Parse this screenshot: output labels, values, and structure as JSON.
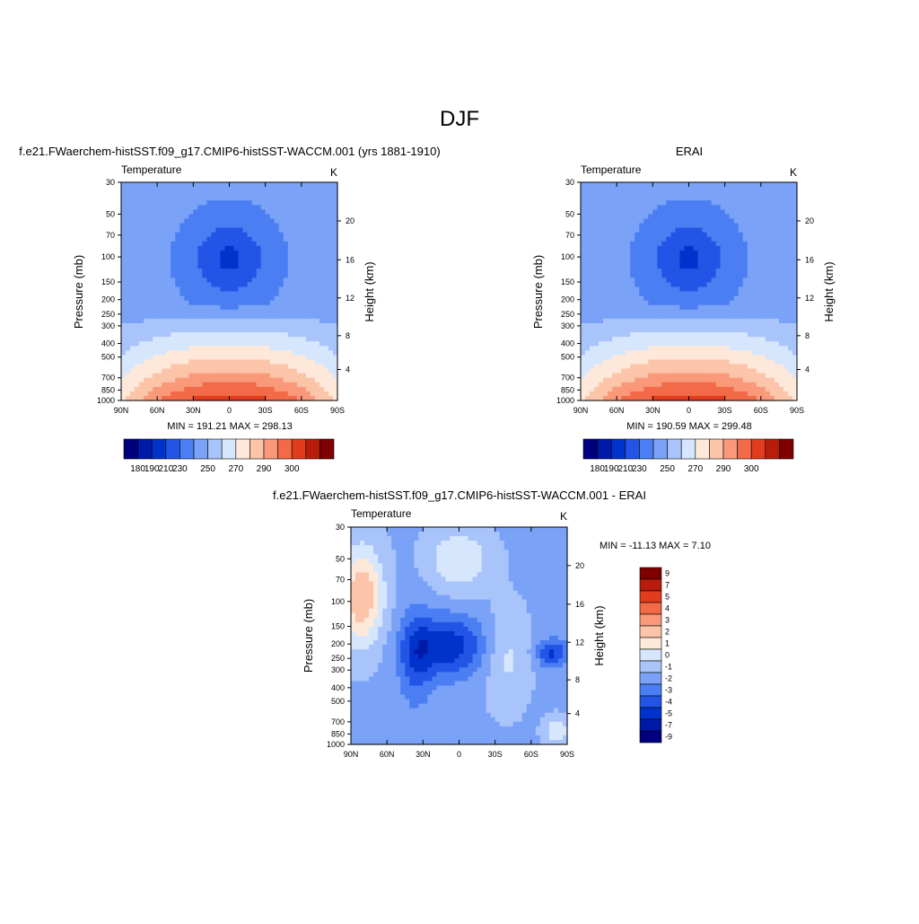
{
  "page_title": "DJF",
  "colors": {
    "temperature_levels": [
      "#00007f",
      "#0019a6",
      "#0033cc",
      "#2255e6",
      "#4a7ef2",
      "#7aa2f7",
      "#a9c4fb",
      "#d6e6fd",
      "#fde8da",
      "#fcc4a8",
      "#f9997a",
      "#f26a47",
      "#e23b1e",
      "#b81c0c",
      "#7f0000"
    ],
    "difference_levels": [
      "#00007f",
      "#0019a6",
      "#0033cc",
      "#2255e6",
      "#4a7ef2",
      "#7aa2f7",
      "#a9c4fb",
      "#d6e6fd",
      "#fde8da",
      "#fcc4a8",
      "#f9997a",
      "#f26a47",
      "#e23b1e",
      "#b81c0c",
      "#7f0000"
    ]
  },
  "chart_data": [
    {
      "type": "heatmap",
      "title": "f.e21.FWaerchem-histSST.f09_g17.CMIP6-histSST-WACCM.001 (yrs 1881-1910)",
      "left_string": "Temperature",
      "right_string": "K",
      "xlabel": "",
      "ylabel": "Pressure (mb)",
      "ylabel_right": "Height (km)",
      "x_ticks": [
        "90N",
        "60N",
        "30N",
        "0",
        "30S",
        "60S",
        "90S"
      ],
      "y_ticks": [
        "30",
        "50",
        "70",
        "100",
        "150",
        "200",
        "250",
        "300",
        "400",
        "500",
        "700",
        "850",
        "1000"
      ],
      "y_right_ticks": [
        "20",
        "16",
        "12",
        "8",
        "4"
      ],
      "stats": "MIN = 191.21  MAX = 298.13",
      "min": 191.21,
      "max": 298.13,
      "colorbar_labels": [
        "180",
        "190",
        "210",
        "230",
        "250",
        "270",
        "290",
        "300"
      ]
    },
    {
      "type": "heatmap",
      "title": "ERAI",
      "left_string": "Temperature",
      "right_string": "K",
      "xlabel": "",
      "ylabel": "Pressure (mb)",
      "ylabel_right": "Height (km)",
      "x_ticks": [
        "90N",
        "60N",
        "30N",
        "0",
        "30S",
        "60S",
        "90S"
      ],
      "y_ticks": [
        "30",
        "50",
        "70",
        "100",
        "150",
        "200",
        "250",
        "300",
        "400",
        "500",
        "700",
        "850",
        "1000"
      ],
      "y_right_ticks": [
        "20",
        "16",
        "12",
        "8",
        "4"
      ],
      "stats": "MIN = 190.59  MAX = 299.48",
      "min": 190.59,
      "max": 299.48,
      "colorbar_labels": [
        "180",
        "190",
        "210",
        "230",
        "250",
        "270",
        "290",
        "300"
      ]
    },
    {
      "type": "heatmap",
      "title": "f.e21.FWaerchem-histSST.f09_g17.CMIP6-histSST-WACCM.001 - ERAI",
      "left_string": "Temperature",
      "right_string": "K",
      "xlabel": "",
      "ylabel": "Pressure (mb)",
      "ylabel_right": "Height (km)",
      "x_ticks": [
        "90N",
        "60N",
        "30N",
        "0",
        "30S",
        "60S",
        "90S"
      ],
      "y_ticks": [
        "30",
        "50",
        "70",
        "100",
        "150",
        "200",
        "250",
        "300",
        "400",
        "500",
        "700",
        "850",
        "1000"
      ],
      "y_right_ticks": [
        "20",
        "16",
        "12",
        "8",
        "4"
      ],
      "stats": "MIN = -11.13  MAX =   7.10",
      "min": -11.13,
      "max": 7.1,
      "colorbar_labels": [
        "9",
        "7",
        "5",
        "4",
        "3",
        "2",
        "1",
        "0",
        "-1",
        "-2",
        "-3",
        "-4",
        "-5",
        "-7",
        "-9"
      ]
    }
  ]
}
